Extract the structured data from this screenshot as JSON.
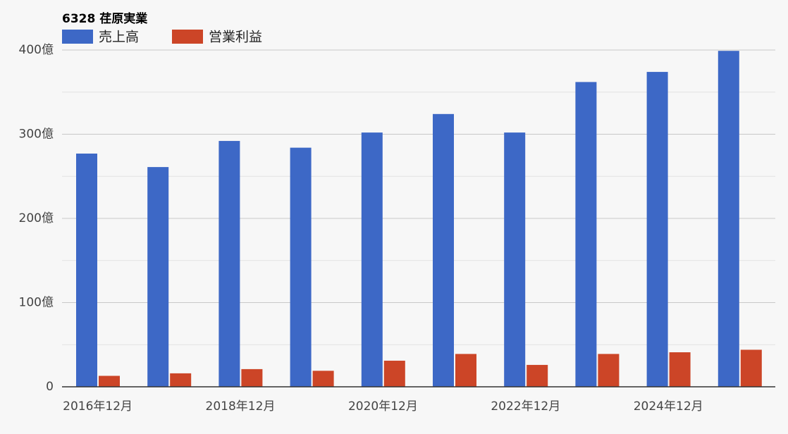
{
  "chart_data": {
    "type": "bar",
    "title": "6328 荏原実業",
    "categories": [
      "2016年12月",
      null,
      "2018年12月",
      null,
      "2020年12月",
      null,
      "2022年12月",
      null,
      "2024年12月",
      null
    ],
    "series": [
      {
        "name": "売上高",
        "color": "#3d68c6",
        "values": [
          277,
          261,
          292,
          284,
          302,
          324,
          302,
          362,
          374,
          399
        ]
      },
      {
        "name": "営業利益",
        "color": "#cc4527",
        "values": [
          13,
          16,
          21,
          19,
          31,
          39,
          26,
          39,
          41,
          44
        ]
      }
    ],
    "ylim": [
      0,
      400
    ],
    "yticks": [
      0,
      {
        "value": 100,
        "label": "100億"
      },
      {
        "value": 200,
        "label": "200億"
      },
      {
        "value": 300,
        "label": "300億"
      },
      {
        "value": 400,
        "label": "400億"
      }
    ],
    "minor_yticks": [
      50,
      150,
      250,
      350
    ],
    "grid": true
  }
}
